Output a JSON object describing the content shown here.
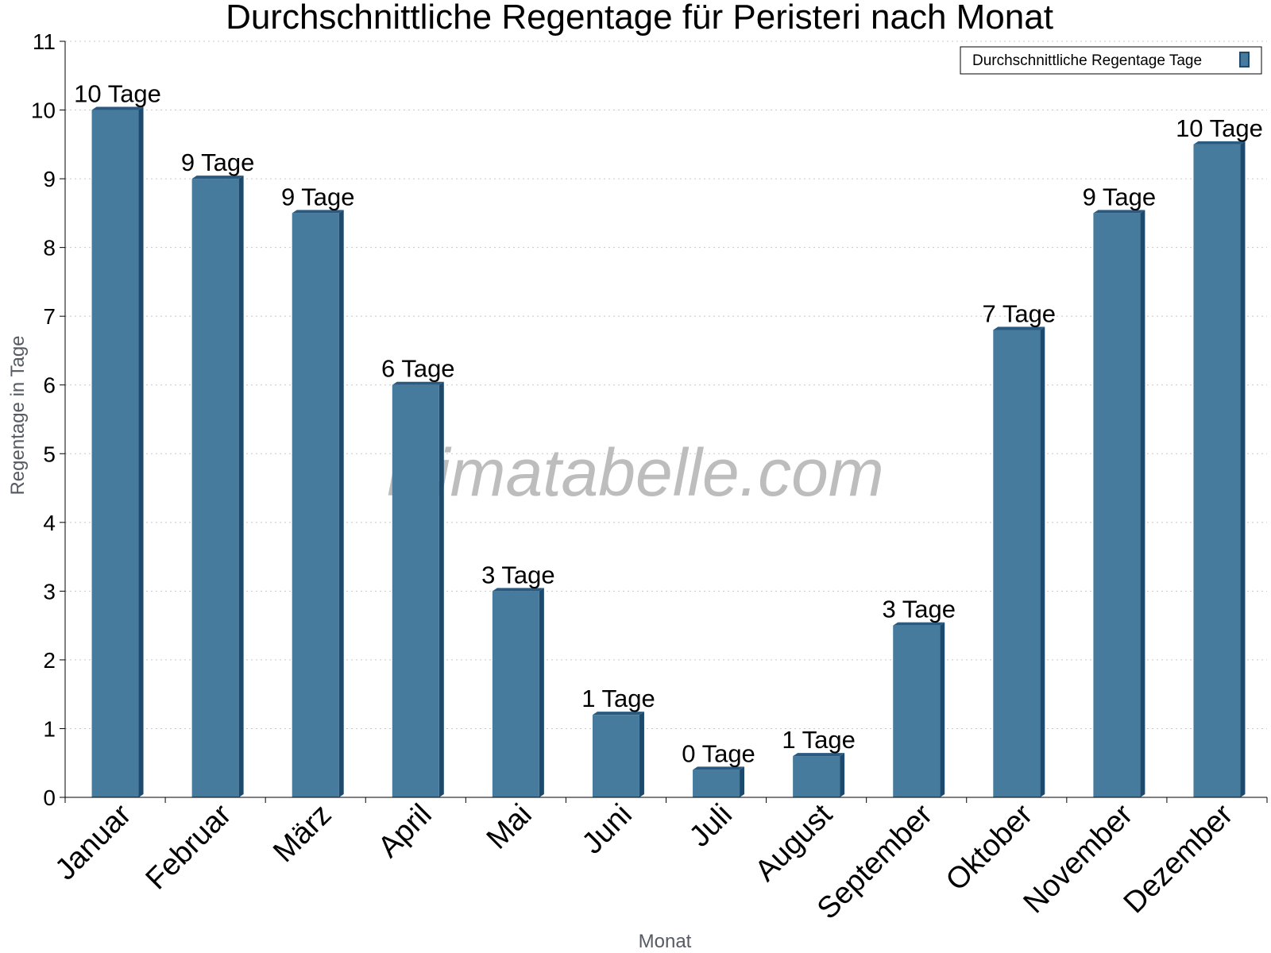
{
  "chart_data": {
    "type": "bar",
    "title": "Durchschnittliche Regentage für Peristeri nach Monat",
    "xlabel": "Monat",
    "ylabel": "Regentage in Tage",
    "ylim": [
      0,
      11
    ],
    "yticks": [
      "0",
      "1",
      "2",
      "3",
      "4",
      "5",
      "6",
      "7",
      "8",
      "9",
      "10",
      "11"
    ],
    "grid": true,
    "legend_position": "top-right",
    "categories": [
      "Januar",
      "Februar",
      "März",
      "April",
      "Mai",
      "Juni",
      "Juli",
      "August",
      "September",
      "Oktober",
      "November",
      "Dezember"
    ],
    "series": [
      {
        "name": "Durchschnittliche Regentage Tage",
        "values": [
          10,
          9,
          8.5,
          6,
          3,
          1.2,
          0.4,
          0.6,
          2.5,
          6.8,
          8.5,
          9.5
        ],
        "labels": [
          "10 Tage",
          "9 Tage",
          "9 Tage",
          "6 Tage",
          "3 Tage",
          "1 Tage",
          "0 Tage",
          "1 Tage",
          "3 Tage",
          "7 Tage",
          "9 Tage",
          "10 Tage"
        ]
      }
    ],
    "colors": {
      "bar": "#467b9e",
      "bar_side": "#1d4a6c",
      "bar_top": "#2a5a80"
    }
  },
  "watermark": "klimatabelle.com"
}
